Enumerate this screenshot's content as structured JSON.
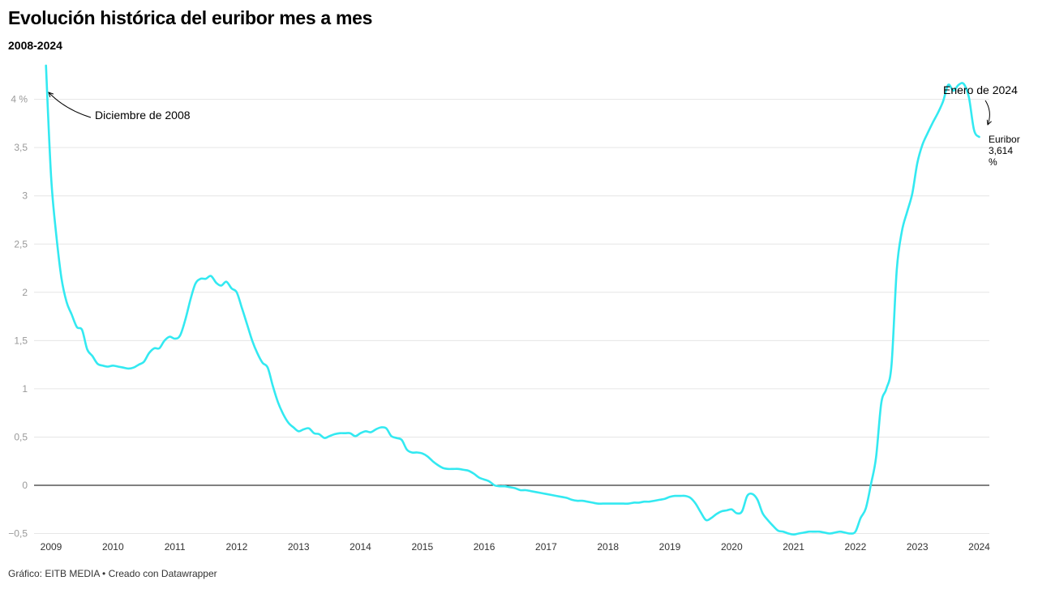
{
  "title": "Evolución histórica del euribor mes a mes",
  "subtitle": "2008-2024",
  "footer": "Gráfico: EITB MEDIA • Creado con Datawrapper",
  "colors": {
    "line": "#33E9F1",
    "grid": "#e6e6e6",
    "zero": "#000000",
    "tick_text": "#999999"
  },
  "chart_data": {
    "type": "line",
    "title": "Evolución histórica del euribor mes a mes",
    "subtitle": "2008-2024",
    "xlabel": "",
    "ylabel": "",
    "ylim": [
      -0.5,
      4.35
    ],
    "xlim": [
      2008.8,
      2024.15
    ],
    "grid": true,
    "yticks": [
      {
        "value": 4,
        "label": "4 %"
      },
      {
        "value": 3.5,
        "label": "3,5"
      },
      {
        "value": 3,
        "label": "3"
      },
      {
        "value": 2.5,
        "label": "2,5"
      },
      {
        "value": 2,
        "label": "2"
      },
      {
        "value": 1.5,
        "label": "1,5"
      },
      {
        "value": 1,
        "label": "1"
      },
      {
        "value": 0.5,
        "label": "0,5"
      },
      {
        "value": 0,
        "label": "0"
      },
      {
        "value": -0.5,
        "label": "−0,5"
      }
    ],
    "xticks": [
      {
        "value": 2009,
        "label": "2009"
      },
      {
        "value": 2010,
        "label": "2010"
      },
      {
        "value": 2011,
        "label": "2011"
      },
      {
        "value": 2012,
        "label": "2012"
      },
      {
        "value": 2013,
        "label": "2013"
      },
      {
        "value": 2014,
        "label": "2014"
      },
      {
        "value": 2015,
        "label": "2015"
      },
      {
        "value": 2016,
        "label": "2016"
      },
      {
        "value": 2017,
        "label": "2017"
      },
      {
        "value": 2018,
        "label": "2018"
      },
      {
        "value": 2019,
        "label": "2019"
      },
      {
        "value": 2020,
        "label": "2020"
      },
      {
        "value": 2021,
        "label": "2021"
      },
      {
        "value": 2022,
        "label": "2022"
      },
      {
        "value": 2023,
        "label": "2023"
      },
      {
        "value": 2024,
        "label": "2024"
      }
    ],
    "series": [
      {
        "points": [
          [
            2008.917,
            4.35
          ],
          [
            2009.0,
            3.2
          ],
          [
            2009.083,
            2.6
          ],
          [
            2009.167,
            2.15
          ],
          [
            2009.25,
            1.9
          ],
          [
            2009.333,
            1.77
          ],
          [
            2009.417,
            1.64
          ],
          [
            2009.5,
            1.61
          ],
          [
            2009.583,
            1.41
          ],
          [
            2009.667,
            1.34
          ],
          [
            2009.75,
            1.26
          ],
          [
            2009.833,
            1.24
          ],
          [
            2009.917,
            1.23
          ],
          [
            2010.0,
            1.24
          ],
          [
            2010.083,
            1.23
          ],
          [
            2010.167,
            1.22
          ],
          [
            2010.25,
            1.21
          ],
          [
            2010.333,
            1.22
          ],
          [
            2010.417,
            1.25
          ],
          [
            2010.5,
            1.28
          ],
          [
            2010.583,
            1.37
          ],
          [
            2010.667,
            1.42
          ],
          [
            2010.75,
            1.42
          ],
          [
            2010.833,
            1.5
          ],
          [
            2010.917,
            1.54
          ],
          [
            2011.0,
            1.52
          ],
          [
            2011.083,
            1.55
          ],
          [
            2011.167,
            1.71
          ],
          [
            2011.25,
            1.92
          ],
          [
            2011.333,
            2.09
          ],
          [
            2011.417,
            2.14
          ],
          [
            2011.5,
            2.14
          ],
          [
            2011.583,
            2.17
          ],
          [
            2011.667,
            2.1
          ],
          [
            2011.75,
            2.07
          ],
          [
            2011.833,
            2.11
          ],
          [
            2011.917,
            2.04
          ],
          [
            2012.0,
            2.0
          ],
          [
            2012.083,
            1.84
          ],
          [
            2012.167,
            1.67
          ],
          [
            2012.25,
            1.5
          ],
          [
            2012.333,
            1.37
          ],
          [
            2012.417,
            1.27
          ],
          [
            2012.5,
            1.22
          ],
          [
            2012.583,
            1.03
          ],
          [
            2012.667,
            0.86
          ],
          [
            2012.75,
            0.74
          ],
          [
            2012.833,
            0.65
          ],
          [
            2012.917,
            0.6
          ],
          [
            2013.0,
            0.56
          ],
          [
            2013.083,
            0.58
          ],
          [
            2013.167,
            0.59
          ],
          [
            2013.25,
            0.54
          ],
          [
            2013.333,
            0.53
          ],
          [
            2013.417,
            0.49
          ],
          [
            2013.5,
            0.51
          ],
          [
            2013.583,
            0.53
          ],
          [
            2013.667,
            0.54
          ],
          [
            2013.75,
            0.54
          ],
          [
            2013.833,
            0.54
          ],
          [
            2013.917,
            0.51
          ],
          [
            2014.0,
            0.54
          ],
          [
            2014.083,
            0.56
          ],
          [
            2014.167,
            0.55
          ],
          [
            2014.25,
            0.58
          ],
          [
            2014.333,
            0.6
          ],
          [
            2014.417,
            0.59
          ],
          [
            2014.5,
            0.51
          ],
          [
            2014.583,
            0.49
          ],
          [
            2014.667,
            0.47
          ],
          [
            2014.75,
            0.37
          ],
          [
            2014.833,
            0.34
          ],
          [
            2014.917,
            0.34
          ],
          [
            2015.0,
            0.33
          ],
          [
            2015.083,
            0.3
          ],
          [
            2015.167,
            0.25
          ],
          [
            2015.25,
            0.21
          ],
          [
            2015.333,
            0.18
          ],
          [
            2015.417,
            0.17
          ],
          [
            2015.5,
            0.17
          ],
          [
            2015.583,
            0.17
          ],
          [
            2015.667,
            0.16
          ],
          [
            2015.75,
            0.15
          ],
          [
            2015.833,
            0.12
          ],
          [
            2015.917,
            0.08
          ],
          [
            2016.0,
            0.06
          ],
          [
            2016.083,
            0.04
          ],
          [
            2016.167,
            0.0
          ],
          [
            2016.25,
            -0.01
          ],
          [
            2016.333,
            -0.01
          ],
          [
            2016.417,
            -0.02
          ],
          [
            2016.5,
            -0.03
          ],
          [
            2016.583,
            -0.05
          ],
          [
            2016.667,
            -0.05
          ],
          [
            2016.75,
            -0.06
          ],
          [
            2016.833,
            -0.07
          ],
          [
            2016.917,
            -0.08
          ],
          [
            2017.0,
            -0.09
          ],
          [
            2017.083,
            -0.1
          ],
          [
            2017.167,
            -0.11
          ],
          [
            2017.25,
            -0.12
          ],
          [
            2017.333,
            -0.13
          ],
          [
            2017.417,
            -0.15
          ],
          [
            2017.5,
            -0.16
          ],
          [
            2017.583,
            -0.16
          ],
          [
            2017.667,
            -0.17
          ],
          [
            2017.75,
            -0.18
          ],
          [
            2017.833,
            -0.19
          ],
          [
            2017.917,
            -0.19
          ],
          [
            2018.0,
            -0.19
          ],
          [
            2018.083,
            -0.19
          ],
          [
            2018.167,
            -0.19
          ],
          [
            2018.25,
            -0.19
          ],
          [
            2018.333,
            -0.19
          ],
          [
            2018.417,
            -0.18
          ],
          [
            2018.5,
            -0.18
          ],
          [
            2018.583,
            -0.17
          ],
          [
            2018.667,
            -0.17
          ],
          [
            2018.75,
            -0.16
          ],
          [
            2018.833,
            -0.15
          ],
          [
            2018.917,
            -0.14
          ],
          [
            2019.0,
            -0.12
          ],
          [
            2019.083,
            -0.11
          ],
          [
            2019.167,
            -0.11
          ],
          [
            2019.25,
            -0.11
          ],
          [
            2019.333,
            -0.13
          ],
          [
            2019.417,
            -0.19
          ],
          [
            2019.5,
            -0.28
          ],
          [
            2019.583,
            -0.36
          ],
          [
            2019.667,
            -0.34
          ],
          [
            2019.75,
            -0.3
          ],
          [
            2019.833,
            -0.27
          ],
          [
            2019.917,
            -0.26
          ],
          [
            2020.0,
            -0.25
          ],
          [
            2020.083,
            -0.29
          ],
          [
            2020.167,
            -0.27
          ],
          [
            2020.25,
            -0.11
          ],
          [
            2020.333,
            -0.09
          ],
          [
            2020.417,
            -0.15
          ],
          [
            2020.5,
            -0.29
          ],
          [
            2020.583,
            -0.36
          ],
          [
            2020.667,
            -0.42
          ],
          [
            2020.75,
            -0.47
          ],
          [
            2020.833,
            -0.48
          ],
          [
            2020.917,
            -0.5
          ],
          [
            2021.0,
            -0.51
          ],
          [
            2021.083,
            -0.5
          ],
          [
            2021.167,
            -0.49
          ],
          [
            2021.25,
            -0.48
          ],
          [
            2021.333,
            -0.48
          ],
          [
            2021.417,
            -0.48
          ],
          [
            2021.5,
            -0.49
          ],
          [
            2021.583,
            -0.5
          ],
          [
            2021.667,
            -0.49
          ],
          [
            2021.75,
            -0.48
          ],
          [
            2021.833,
            -0.49
          ],
          [
            2021.917,
            -0.5
          ],
          [
            2022.0,
            -0.48
          ],
          [
            2022.083,
            -0.34
          ],
          [
            2022.167,
            -0.24
          ],
          [
            2022.25,
            0.01
          ],
          [
            2022.333,
            0.29
          ],
          [
            2022.417,
            0.85
          ],
          [
            2022.5,
            1.0
          ],
          [
            2022.583,
            1.25
          ],
          [
            2022.667,
            2.23
          ],
          [
            2022.75,
            2.63
          ],
          [
            2022.833,
            2.83
          ],
          [
            2022.917,
            3.02
          ],
          [
            2023.0,
            3.34
          ],
          [
            2023.083,
            3.53
          ],
          [
            2023.167,
            3.65
          ],
          [
            2023.25,
            3.76
          ],
          [
            2023.333,
            3.86
          ],
          [
            2023.417,
            3.98
          ],
          [
            2023.5,
            4.15
          ],
          [
            2023.583,
            4.09
          ],
          [
            2023.667,
            4.15
          ],
          [
            2023.75,
            4.16
          ],
          [
            2023.833,
            4.02
          ],
          [
            2023.917,
            3.68
          ],
          [
            2024.0,
            3.61
          ]
        ]
      }
    ],
    "annotations": [
      {
        "text": "Diciembre de 2008"
      },
      {
        "text": "Enero de 2024"
      },
      {
        "lines": [
          "Euribor",
          "3,614",
          "%"
        ]
      }
    ]
  }
}
